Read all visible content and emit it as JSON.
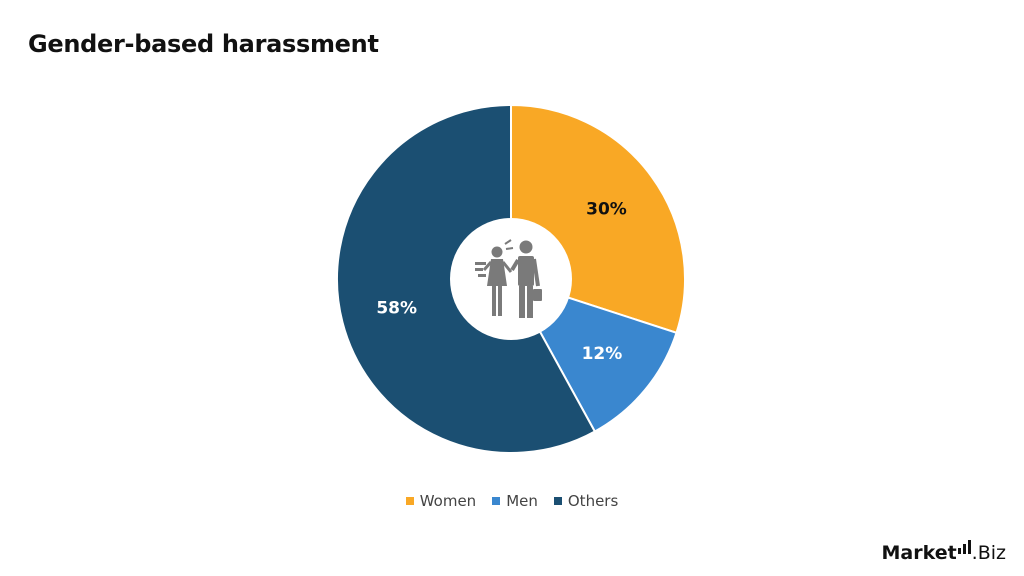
{
  "title": "Gender-based harassment",
  "chart_data": {
    "type": "pie",
    "donut": true,
    "title": "Gender-based harassment",
    "categories": [
      "Women",
      "Men",
      "Others"
    ],
    "values": [
      30,
      12,
      58
    ],
    "labels": [
      "30%",
      "12%",
      "58%"
    ],
    "colors": [
      "#F9A825",
      "#3A87CF",
      "#1B4F72"
    ],
    "label_colors": [
      "#111111",
      "#ffffff",
      "#ffffff"
    ],
    "start_angle": "top, clockwise",
    "legend_position": "bottom",
    "center_icon": "harassment-people-icon"
  },
  "legend": [
    {
      "label": "Women",
      "color": "#F9A825"
    },
    {
      "label": "Men",
      "color": "#3A87CF"
    },
    {
      "label": "Others",
      "color": "#1B4F72"
    }
  ],
  "brand": {
    "part1": "Market",
    "part2": ".Biz"
  }
}
